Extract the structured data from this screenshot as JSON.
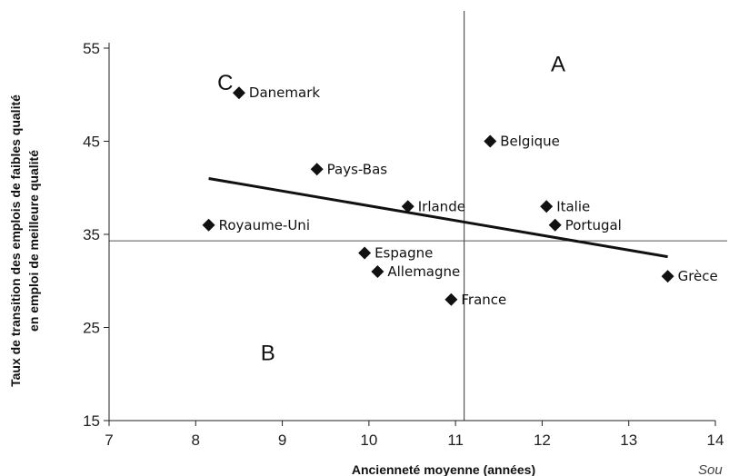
{
  "chart_data": {
    "type": "scatter",
    "title": "",
    "xlabel": "Ancienneté moyenne (années)",
    "ylabel_line1": "Taux de transition des emplois de faibles qualité",
    "ylabel_line2": "en emploi de meilleure qualité",
    "xlim": [
      7,
      14
    ],
    "ylim": [
      15,
      55
    ],
    "xticks": [
      7,
      8,
      9,
      10,
      11,
      12,
      13,
      14
    ],
    "yticks": [
      15,
      25,
      35,
      45,
      55
    ],
    "grid": false,
    "points": [
      {
        "label": "Danemark",
        "x": 8.5,
        "y": 50.2
      },
      {
        "label": "Belgique",
        "x": 11.4,
        "y": 45.0
      },
      {
        "label": "Pays-Bas",
        "x": 9.4,
        "y": 42.0
      },
      {
        "label": "Irlande",
        "x": 10.45,
        "y": 38.0
      },
      {
        "label": "Italie",
        "x": 12.05,
        "y": 38.0
      },
      {
        "label": "Portugal",
        "x": 12.15,
        "y": 36.0
      },
      {
        "label": "Royaume-Uni",
        "x": 8.15,
        "y": 36.0
      },
      {
        "label": "Espagne",
        "x": 9.95,
        "y": 33.0
      },
      {
        "label": "Allemagne",
        "x": 10.1,
        "y": 31.0
      },
      {
        "label": "France",
        "x": 10.95,
        "y": 28.0
      },
      {
        "label": "Grèce",
        "x": 13.45,
        "y": 30.5
      }
    ],
    "trendline": {
      "x1": 8.15,
      "y1": 41.0,
      "x2": 13.45,
      "y2": 32.6
    },
    "reference_lines": {
      "vertical_x": 11.1,
      "horizontal_y": 34.3
    },
    "quadrants": [
      {
        "label": "A",
        "x": 12.1,
        "y": 52.5
      },
      {
        "label": "B",
        "x": 8.75,
        "y": 21.5
      },
      {
        "label": "C",
        "x": 8.25,
        "y": 50.5
      }
    ],
    "source_text": "Sou"
  }
}
